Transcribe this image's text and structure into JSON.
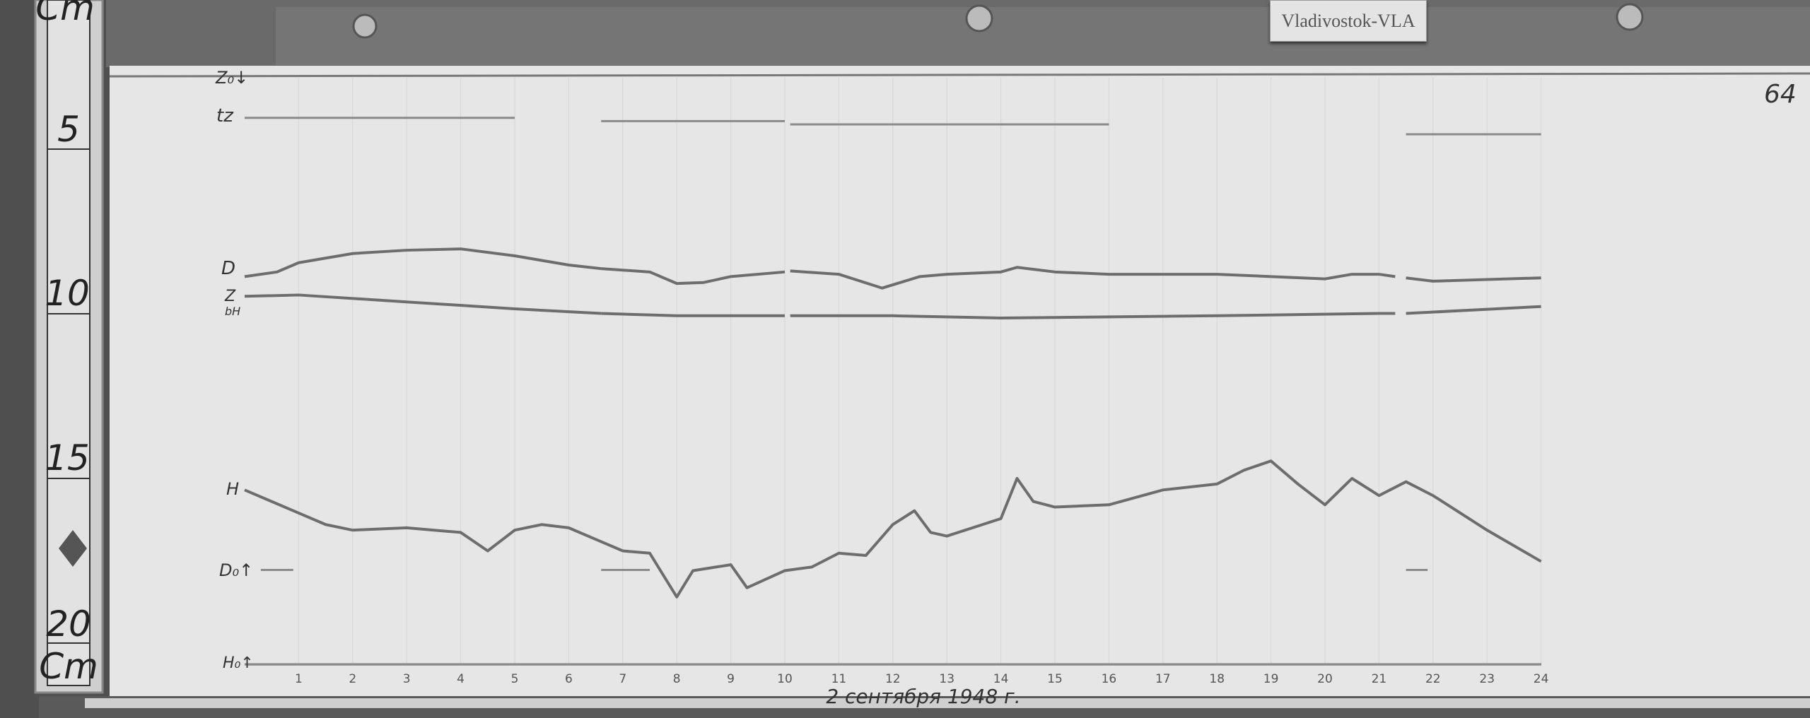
{
  "station_tag": "Vladivostok-VLA",
  "sheet_number": "64",
  "caption": "2 сентября 1948 г.",
  "ruler": {
    "unit": "Cm",
    "labels": [
      "5",
      "10",
      "15",
      "20"
    ]
  },
  "trace_labels": {
    "z0": "Z₀↓",
    "tz": "tz",
    "d": "D",
    "z": "Z",
    "bh": "bH",
    "h": "H",
    "d0": "D₀↑",
    "h0": "H₀↑"
  },
  "colors": {
    "paper": "#e6e6e6",
    "trace": "#6d6d6d",
    "frame": "#6a6a6a",
    "wood": "#4a4a4a"
  },
  "chart_data": {
    "type": "line",
    "xlabel": "",
    "ylabel": "Cm",
    "xlim": [
      0,
      24
    ],
    "ylim": [
      0,
      20
    ],
    "y_reversed": true,
    "grid": true,
    "tick_labels": [
      "1",
      "2",
      "3",
      "4",
      "5",
      "6",
      "7",
      "8",
      "9",
      "10",
      "11",
      "12",
      "13",
      "14",
      "15",
      "16",
      "17",
      "18",
      "19",
      "20",
      "21",
      "22",
      "23",
      "24"
    ],
    "series": [
      {
        "name": "D",
        "segments": [
          [
            [
              0,
              8.87
            ],
            [
              0.6,
              8.73
            ],
            [
              1,
              8.45
            ],
            [
              2,
              8.17
            ],
            [
              3,
              8.07
            ],
            [
              4,
              8.03
            ],
            [
              5,
              8.24
            ],
            [
              6,
              8.52
            ],
            [
              6.6,
              8.63
            ]
          ],
          [
            [
              6.6,
              8.63
            ],
            [
              7.5,
              8.73
            ],
            [
              8,
              9.08
            ],
            [
              8.5,
              9.05
            ],
            [
              9,
              8.87
            ],
            [
              10,
              8.73
            ]
          ],
          [
            [
              10.1,
              8.7
            ],
            [
              11,
              8.8
            ],
            [
              11.8,
              9.22
            ],
            [
              12.5,
              8.87
            ],
            [
              13,
              8.8
            ],
            [
              14,
              8.73
            ],
            [
              14.3,
              8.59
            ],
            [
              15,
              8.73
            ],
            [
              16,
              8.8
            ],
            [
              18,
              8.8
            ],
            [
              19,
              8.87
            ],
            [
              20,
              8.94
            ],
            [
              20.5,
              8.8
            ],
            [
              21,
              8.8
            ],
            [
              21.3,
              8.87
            ]
          ],
          [
            [
              21.5,
              8.91
            ],
            [
              22,
              9.01
            ],
            [
              24,
              8.91
            ]
          ]
        ]
      },
      {
        "name": "Z",
        "segments": [
          [
            [
              0,
              9.47
            ],
            [
              1,
              9.43
            ],
            [
              3,
              9.64
            ],
            [
              5,
              9.85
            ],
            [
              6.6,
              9.99
            ]
          ],
          [
            [
              6.6,
              9.99
            ],
            [
              8,
              10.06
            ],
            [
              10,
              10.06
            ]
          ],
          [
            [
              10.1,
              10.06
            ],
            [
              12,
              10.06
            ],
            [
              14,
              10.13
            ],
            [
              18,
              10.06
            ],
            [
              21,
              9.99
            ],
            [
              21.3,
              9.99
            ]
          ],
          [
            [
              21.5,
              9.99
            ],
            [
              24,
              9.78
            ]
          ]
        ]
      },
      {
        "name": "H",
        "segments": [
          [
            [
              0,
              15.35
            ],
            [
              0.5,
              15.7
            ],
            [
              1,
              16.05
            ],
            [
              1.5,
              16.4
            ],
            [
              2,
              16.57
            ],
            [
              3,
              16.5
            ],
            [
              4,
              16.64
            ],
            [
              4.5,
              17.2
            ],
            [
              5,
              16.57
            ],
            [
              5.5,
              16.4
            ],
            [
              6,
              16.5
            ],
            [
              6.5,
              16.85
            ],
            [
              7,
              17.2
            ],
            [
              7.5,
              17.27
            ],
            [
              8,
              18.6
            ],
            [
              8.3,
              17.8
            ],
            [
              9,
              17.62
            ],
            [
              9.3,
              18.32
            ],
            [
              10,
              17.8
            ],
            [
              10.5,
              17.69
            ],
            [
              11,
              17.27
            ],
            [
              11.5,
              17.34
            ],
            [
              12,
              16.4
            ],
            [
              12.4,
              15.98
            ],
            [
              12.7,
              16.64
            ],
            [
              13,
              16.75
            ],
            [
              14,
              16.22
            ],
            [
              14.3,
              15.0
            ],
            [
              14.6,
              15.7
            ],
            [
              15,
              15.87
            ],
            [
              16,
              15.8
            ],
            [
              17,
              15.35
            ],
            [
              18,
              15.17
            ],
            [
              18.5,
              14.75
            ],
            [
              19,
              14.47
            ],
            [
              19.5,
              15.17
            ],
            [
              20,
              15.8
            ],
            [
              20.5,
              15.0
            ],
            [
              21,
              15.52
            ],
            [
              21.5,
              15.1
            ],
            [
              22,
              15.52
            ],
            [
              23,
              16.57
            ],
            [
              24,
              17.52
            ]
          ]
        ]
      }
    ],
    "baselines": [
      {
        "name": "tz",
        "segments": [
          [
            [
              0,
              4.05
            ],
            [
              5,
              4.05
            ]
          ],
          [
            [
              6.6,
              4.15
            ],
            [
              10,
              4.15
            ]
          ],
          [
            [
              10.1,
              4.25
            ],
            [
              16,
              4.25
            ]
          ],
          [
            [
              21.5,
              4.55
            ],
            [
              24,
              4.55
            ]
          ]
        ]
      },
      {
        "name": "D₀",
        "segments": [
          [
            [
              0.3,
              17.78
            ],
            [
              0.9,
              17.78
            ]
          ],
          [
            [
              6.6,
              17.78
            ],
            [
              7.5,
              17.78
            ]
          ],
          [
            [
              21.5,
              17.78
            ],
            [
              21.9,
              17.78
            ]
          ]
        ]
      },
      {
        "name": "H₀",
        "segments": [
          [
            [
              0,
              20.65
            ],
            [
              24,
              20.65
            ]
          ]
        ]
      }
    ]
  }
}
